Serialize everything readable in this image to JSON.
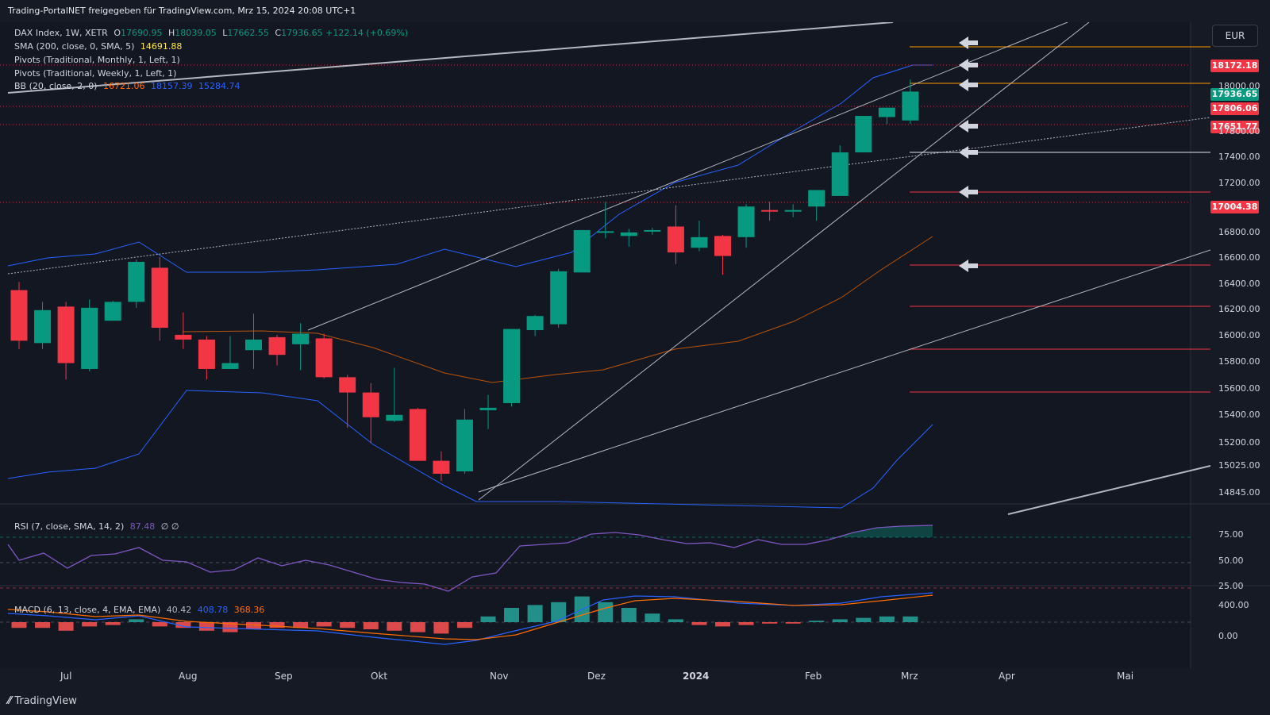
{
  "header": {
    "title": "Trading-PortalNET freigegeben für TradingView.com, Mrz 15, 2024 20:08 UTC+1"
  },
  "currency": "EUR",
  "legend": {
    "symbol": "DAX Index, 1W, XETR",
    "o_label": "O",
    "o": "17690.95",
    "h_label": "H",
    "h": "18039.05",
    "l_label": "L",
    "l": "17662.55",
    "c_label": "C",
    "c": "17936.65",
    "change": "+122.14 (+0.69%)",
    "sma_label": "SMA (200, close, 0, SMA, 5)",
    "sma_value": "14691.88",
    "pivots_monthly": "Pivots (Traditional, Monthly, 1, Left, 1)",
    "pivots_weekly": "Pivots (Traditional, Weekly, 1, Left, 1)",
    "bb_label": "BB (20, close, 2, 0)",
    "bb_basis": "16721.06",
    "bb_upper": "18157.39",
    "bb_lower": "15284.74",
    "rsi_label": "RSI (7, close, SMA, 14, 2)",
    "rsi_value": "87.48",
    "rsi_extra": "∅ ∅",
    "macd_label": "MACD (6, 13, close, 4, EMA, EMA)",
    "macd_hist": "40.42",
    "macd_line": "408.78",
    "macd_signal": "368.36"
  },
  "price_tags": [
    {
      "text": "18172.18",
      "color": "#f23645"
    },
    {
      "text": "17936.65",
      "color": "#089981"
    },
    {
      "text": "17806.06",
      "color": "#f23645"
    },
    {
      "text": "17651.77",
      "color": "#f23645"
    },
    {
      "text": "17004.38",
      "color": "#f23645"
    }
  ],
  "y_axis": [
    "18000.00",
    "17800.00",
    "17400.00",
    "17200.00",
    "16800.00",
    "16600.00",
    "16400.00",
    "16200.00",
    "16000.00",
    "15800.00",
    "15600.00",
    "15400.00",
    "15200.00",
    "15025.00",
    "14845.00"
  ],
  "rsi_axis": [
    "75.00",
    "50.00",
    "25.00"
  ],
  "macd_axis": [
    "400.00",
    "0.00"
  ],
  "x_axis": [
    "Jul",
    "Aug",
    "Sep",
    "Okt",
    "Nov",
    "Dez",
    "2024",
    "Feb",
    "Mrz",
    "Apr",
    "Mai"
  ],
  "footer": {
    "brand": "TradingView"
  },
  "colors": {
    "up": "#089981",
    "down": "#f23645",
    "background": "#161a25",
    "bb_line": "#2962ff",
    "basis": "#ff6d00",
    "rsi": "#7e57c2"
  },
  "chart_data": {
    "type": "candlestick",
    "timeframe": "1W",
    "candles": [
      {
        "o": 16250,
        "h": 16320,
        "l": 15750,
        "c": 15820
      },
      {
        "o": 15800,
        "h": 16150,
        "l": 15750,
        "c": 16080
      },
      {
        "o": 16110,
        "h": 16150,
        "l": 15490,
        "c": 15630
      },
      {
        "o": 15580,
        "h": 16170,
        "l": 15560,
        "c": 16100
      },
      {
        "o": 15990,
        "h": 16160,
        "l": 15990,
        "c": 16150
      },
      {
        "o": 16150,
        "h": 16510,
        "l": 16100,
        "c": 16490
      },
      {
        "o": 16440,
        "h": 16530,
        "l": 15820,
        "c": 15930
      },
      {
        "o": 15870,
        "h": 16060,
        "l": 15750,
        "c": 15830
      },
      {
        "o": 15830,
        "h": 15860,
        "l": 15490,
        "c": 15580
      },
      {
        "o": 15580,
        "h": 15860,
        "l": 15580,
        "c": 15630
      },
      {
        "o": 15740,
        "h": 16050,
        "l": 15580,
        "c": 15830
      },
      {
        "o": 15850,
        "h": 15870,
        "l": 15610,
        "c": 15700
      },
      {
        "o": 15790,
        "h": 15970,
        "l": 15570,
        "c": 15880
      },
      {
        "o": 15840,
        "h": 15880,
        "l": 15500,
        "c": 15510
      },
      {
        "o": 15510,
        "h": 15530,
        "l": 15080,
        "c": 15380
      },
      {
        "o": 15380,
        "h": 15460,
        "l": 14950,
        "c": 15170
      },
      {
        "o": 15140,
        "h": 15590,
        "l": 15130,
        "c": 15190
      },
      {
        "o": 15240,
        "h": 15250,
        "l": 14810,
        "c": 14800
      },
      {
        "o": 14800,
        "h": 14880,
        "l": 14630,
        "c": 14690
      },
      {
        "o": 14710,
        "h": 15240,
        "l": 14690,
        "c": 15150
      },
      {
        "o": 15230,
        "h": 15360,
        "l": 15070,
        "c": 15250
      },
      {
        "o": 15290,
        "h": 15920,
        "l": 15260,
        "c": 15920
      },
      {
        "o": 15910,
        "h": 16040,
        "l": 15860,
        "c": 16030
      },
      {
        "o": 15960,
        "h": 16430,
        "l": 15930,
        "c": 16410
      },
      {
        "o": 16400,
        "h": 16760,
        "l": 16400,
        "c": 16760
      },
      {
        "o": 16750,
        "h": 17000,
        "l": 16690,
        "c": 16750
      },
      {
        "o": 16710,
        "h": 16770,
        "l": 16620,
        "c": 16740
      },
      {
        "o": 16750,
        "h": 16780,
        "l": 16720,
        "c": 16760
      },
      {
        "o": 16790,
        "h": 16970,
        "l": 16470,
        "c": 16570
      },
      {
        "o": 16610,
        "h": 16840,
        "l": 16580,
        "c": 16700
      },
      {
        "o": 16710,
        "h": 16720,
        "l": 16380,
        "c": 16540
      },
      {
        "o": 16700,
        "h": 16980,
        "l": 16610,
        "c": 16960
      },
      {
        "o": 16930,
        "h": 17000,
        "l": 16840,
        "c": 16920
      },
      {
        "o": 16920,
        "h": 16980,
        "l": 16870,
        "c": 16930
      },
      {
        "o": 16960,
        "h": 17100,
        "l": 16840,
        "c": 17100
      },
      {
        "o": 17050,
        "h": 17480,
        "l": 17050,
        "c": 17420
      },
      {
        "o": 17420,
        "h": 17730,
        "l": 17420,
        "c": 17730
      },
      {
        "o": 17720,
        "h": 17800,
        "l": 17660,
        "c": 17800
      },
      {
        "o": 17690.95,
        "h": 18039.05,
        "l": 17662.55,
        "c": 17936.65
      }
    ],
    "pivot_levels_right": [
      18172.18,
      18017,
      17806.06,
      17651.77,
      17435,
      17130,
      16500,
      16180,
      15800,
      15490
    ],
    "price_labels": [
      "18172.18",
      "17936.65",
      "17806.06",
      "17651.77",
      "17004.38"
    ],
    "indicators": {
      "sma_200": 14691.88,
      "bb": {
        "basis": 16721.06,
        "upper": 18157.39,
        "lower": 15284.74
      },
      "rsi": 87.48,
      "macd": {
        "histogram": 40.42,
        "macd": 408.78,
        "signal": 368.36
      }
    },
    "x_labels": [
      "Jul",
      "Aug",
      "Sep",
      "Okt",
      "Nov",
      "Dez",
      "2024",
      "Feb",
      "Mrz",
      "Apr",
      "Mai"
    ]
  }
}
